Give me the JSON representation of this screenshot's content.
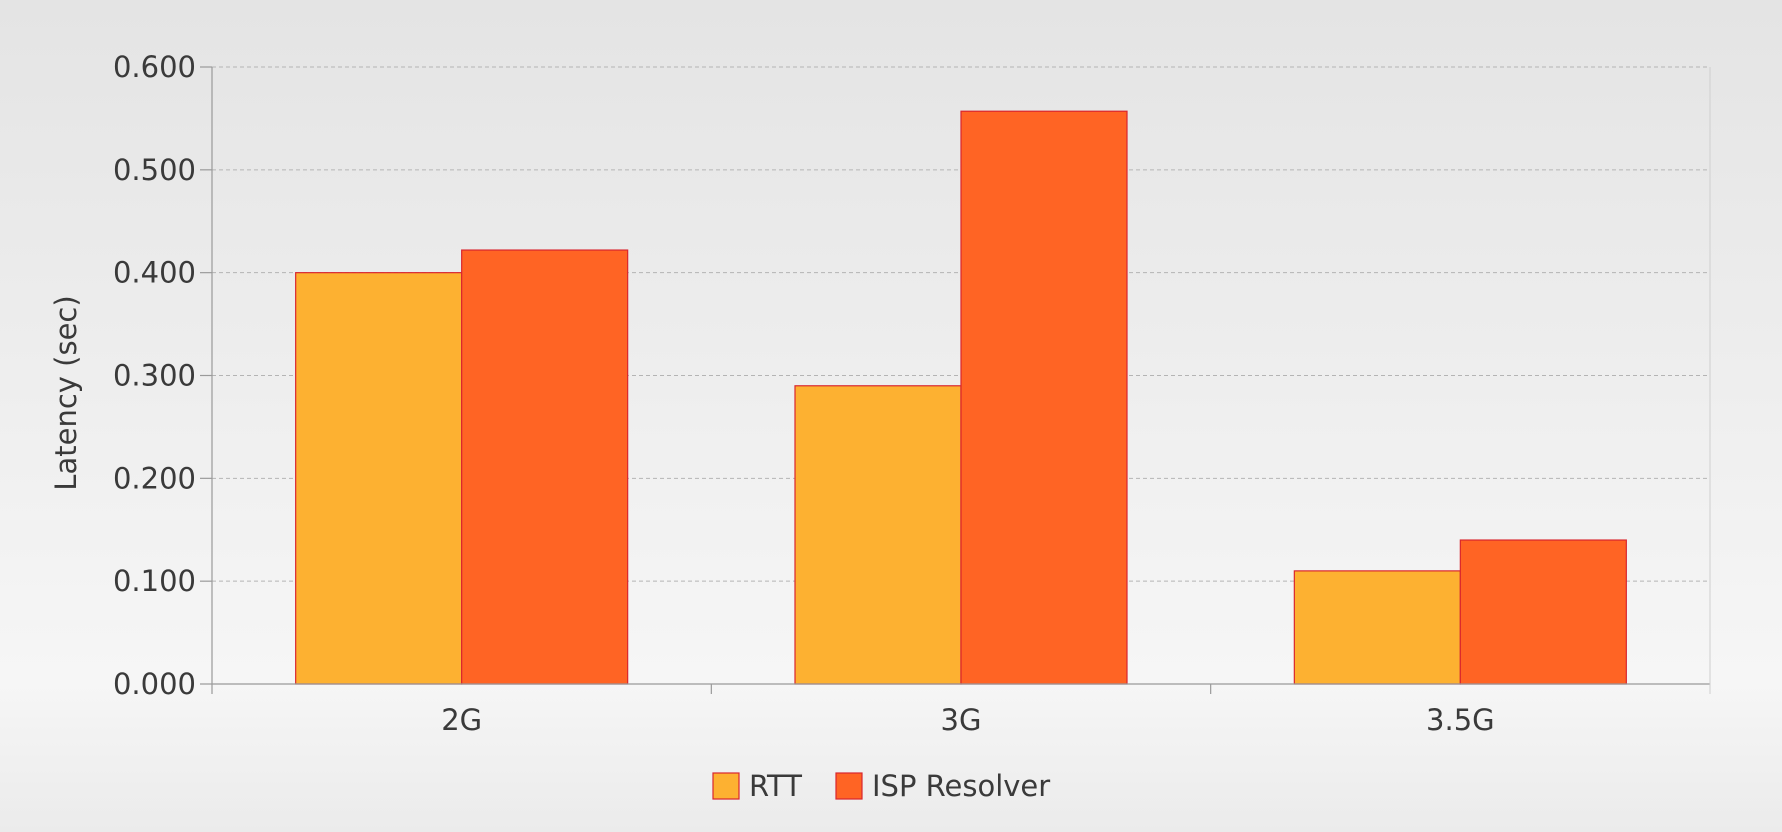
{
  "chart_data": {
    "type": "bar",
    "categories": [
      "2G",
      "3G",
      "3.5G"
    ],
    "series": [
      {
        "name": "RTT",
        "values": [
          0.4,
          0.29,
          0.11
        ],
        "color": "#fdb131"
      },
      {
        "name": "ISP Resolver",
        "values": [
          0.422,
          0.557,
          0.14
        ],
        "color": "#ff6424"
      }
    ],
    "xlabel": "",
    "ylabel": "Latency (sec)",
    "ylim": [
      0,
      0.6
    ],
    "yticks": [
      "0.000",
      "0.100",
      "0.200",
      "0.300",
      "0.400",
      "0.500",
      "0.600"
    ],
    "grid": true,
    "legend_position": "bottom-center",
    "bar_edge_color": "#d9262e"
  }
}
